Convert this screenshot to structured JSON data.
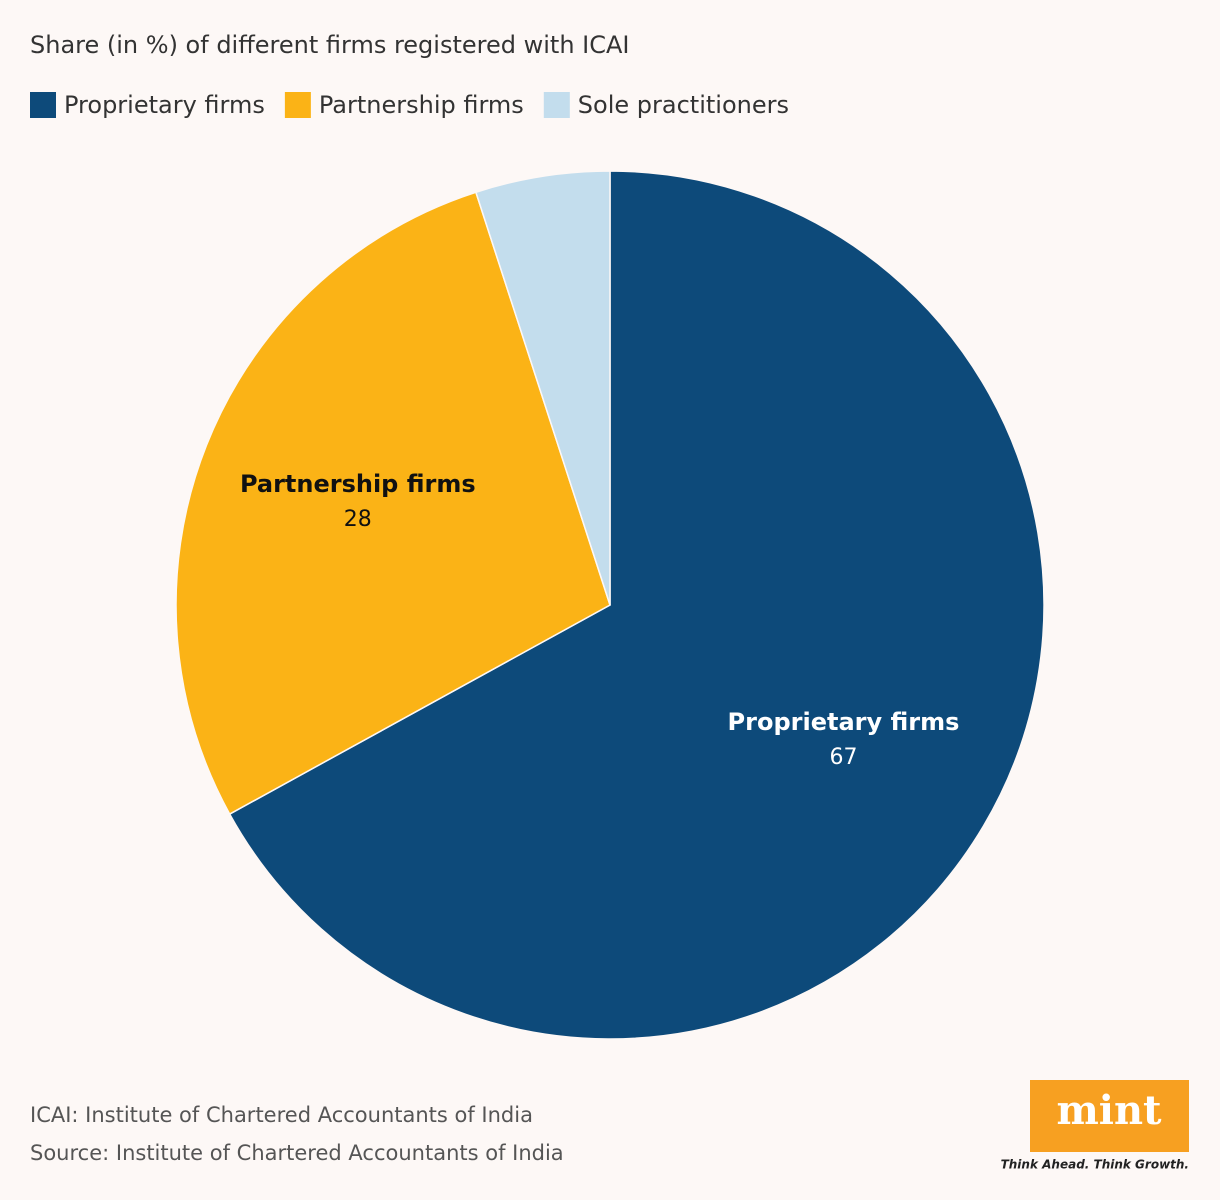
{
  "chart_data": {
    "type": "pie",
    "title": "Share (in %) of different firms registered with ICAI",
    "categories": [
      "Proprietary firms",
      "Partnership firms",
      "Sole practitioners"
    ],
    "values": [
      67,
      28,
      5
    ],
    "colors": [
      "#0d4a7a",
      "#fbb316",
      "#c3dded"
    ],
    "notes": [
      "ICAI: Institute of Chartered Accountants of India",
      "Source: Institute of Chartered Accountants of India"
    ],
    "logo": {
      "name": "mint",
      "tagline": "Think Ahead. Think Growth."
    }
  }
}
